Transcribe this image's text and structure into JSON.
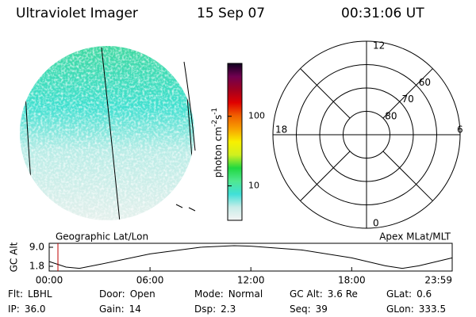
{
  "header": {
    "title": "Ultraviolet Imager",
    "date": "15 Sep 07",
    "time": "00:31:06 UT"
  },
  "colorbar": {
    "label": [
      "photon cm",
      "-2",
      "s",
      "-1"
    ],
    "scale": "log",
    "lim": [
      3.2,
      575
    ],
    "ticks": [
      10,
      100
    ],
    "colors": [
      "#f4f4f4",
      "#c8ece8",
      "#40e0d8",
      "#50e890",
      "#20d840",
      "#d0f020",
      "#f8f000",
      "#f8a000",
      "#f06000",
      "#e00000",
      "#a00020",
      "#700050",
      "#100020"
    ]
  },
  "polar": {
    "clock_labels": [
      "12",
      "6",
      "0",
      "18"
    ],
    "rings": [
      80,
      70,
      60,
      50
    ],
    "ring_labels": [
      "80",
      "70",
      "60"
    ]
  },
  "orbit": {
    "left_label": "Geographic Lat/Lon",
    "right_label": "Apex MLat/MLT",
    "y_label": "GC Alt",
    "ylim": [
      0,
      10.5
    ],
    "yticks": [
      {
        "value": 9.0,
        "label": "9.0"
      },
      1.8
    ],
    "xlim": [
      0,
      23.98
    ],
    "xticks": [
      {
        "value": 0,
        "label": "00:00"
      },
      {
        "value": 6,
        "label": "06:00"
      },
      {
        "value": 12,
        "label": "12:00"
      },
      {
        "value": 18,
        "label": "18:00"
      },
      {
        "value": 23.98,
        "label": "23:59"
      }
    ],
    "x": [
      0,
      1,
      1.8,
      3,
      6,
      9,
      11,
      12,
      15,
      18,
      20,
      21,
      22,
      23.98
    ],
    "values": [
      3.6,
      1.5,
      1.0,
      2.5,
      6.5,
      9.0,
      9.6,
      9.4,
      8.0,
      5.0,
      2.0,
      1.0,
      2.0,
      5.0
    ],
    "marker_hour": 0.52,
    "marker_color": "#c00000"
  },
  "info": [
    [
      {
        "label": "Flt:",
        "value": "LBHL"
      },
      {
        "label": "Door:",
        "value": "Open"
      },
      {
        "label": "Mode:",
        "value": "Normal"
      },
      {
        "label": "GC Alt:",
        "value": "3.6 Re"
      },
      {
        "label": "GLat:",
        "value": "0.6"
      }
    ],
    [
      {
        "label": "IP:",
        "value": "36.0"
      },
      {
        "label": "Gain:",
        "value": "14"
      },
      {
        "label": "Dsp:",
        "value": "2.3"
      },
      {
        "label": "Seq:",
        "value": "39"
      },
      {
        "label": "GLon:",
        "value": "333.5"
      }
    ]
  ]
}
